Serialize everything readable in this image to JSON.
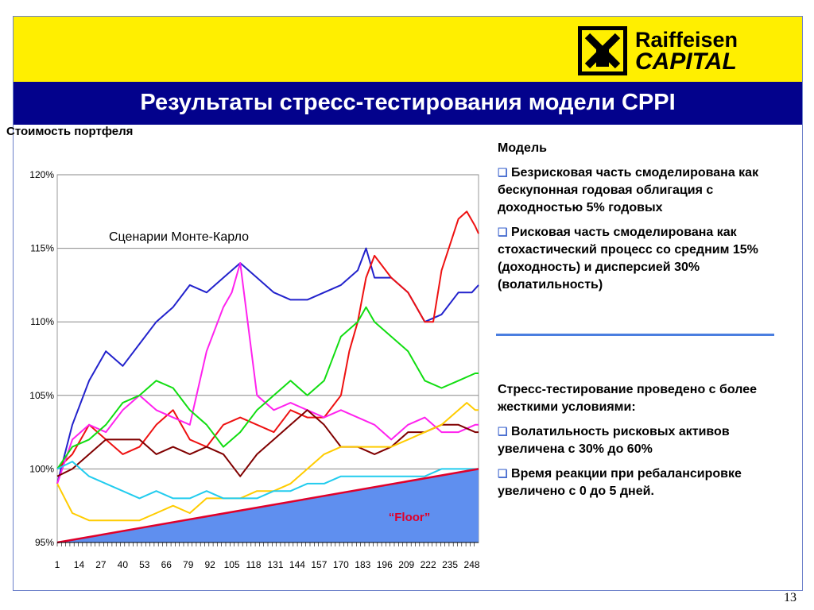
{
  "brand": {
    "line1": "Raiffeisen",
    "line2": "CAPITAL"
  },
  "slide": {
    "title": "Результаты стресс-тестирования модели CPPI",
    "page_number": "13"
  },
  "chart_data": {
    "type": "line",
    "title": "Стоимость портфеля",
    "annotation": "Сценарии Монте-Карло",
    "floor_label": "“Floor”",
    "y_ticks": [
      "95%",
      "100%",
      "105%",
      "110%",
      "115%",
      "120%"
    ],
    "ylim": [
      95,
      120
    ],
    "x_ticks": [
      "1",
      "14",
      "27",
      "40",
      "53",
      "66",
      "79",
      "92",
      "105",
      "118",
      "131",
      "144",
      "157",
      "170",
      "183",
      "196",
      "209",
      "222",
      "235",
      "248"
    ],
    "xlim": [
      1,
      252
    ],
    "grid": true,
    "floor": {
      "color": "#5f8fef",
      "line_color": "#e0002a",
      "x": [
        1,
        252
      ],
      "y": [
        95,
        100
      ]
    },
    "series": [
      {
        "color": "#2222cc",
        "x": [
          1,
          10,
          20,
          30,
          40,
          50,
          60,
          70,
          80,
          90,
          100,
          110,
          120,
          130,
          140,
          150,
          160,
          170,
          180,
          185,
          190,
          200,
          210,
          220,
          230,
          240,
          248,
          252
        ],
        "y": [
          99,
          103,
          106,
          108,
          107,
          108.5,
          110,
          111,
          112.5,
          112,
          113,
          114,
          113,
          112,
          111.5,
          111.5,
          112,
          112.5,
          113.5,
          115,
          113,
          113,
          112,
          110,
          110.5,
          112,
          112,
          112.5
        ]
      },
      {
        "color": "#ee1111",
        "x": [
          1,
          10,
          20,
          30,
          40,
          50,
          60,
          70,
          80,
          90,
          100,
          110,
          120,
          130,
          140,
          150,
          160,
          170,
          175,
          180,
          185,
          190,
          200,
          210,
          215,
          220,
          225,
          230,
          240,
          245,
          250,
          252
        ],
        "y": [
          100,
          101,
          103,
          102,
          101,
          101.5,
          103,
          104,
          102,
          101.5,
          103,
          103.5,
          103,
          102.5,
          104,
          103.5,
          103.5,
          105,
          108,
          110,
          113,
          114.5,
          113,
          112,
          111,
          110,
          110,
          113.5,
          117,
          117.5,
          116.5,
          116
        ]
      },
      {
        "color": "#ff22ee",
        "x": [
          1,
          10,
          20,
          30,
          40,
          50,
          60,
          70,
          80,
          90,
          100,
          105,
          110,
          120,
          130,
          140,
          150,
          160,
          170,
          180,
          190,
          200,
          210,
          220,
          230,
          240,
          250,
          252
        ],
        "y": [
          99,
          102,
          103,
          102.5,
          104,
          105,
          104,
          103.5,
          103,
          108,
          111,
          112,
          114,
          105,
          104,
          104.5,
          104,
          103.5,
          104,
          103.5,
          103,
          102,
          103,
          103.5,
          102.5,
          102.5,
          103,
          103
        ]
      },
      {
        "color": "#11dd11",
        "x": [
          1,
          10,
          20,
          30,
          40,
          50,
          60,
          70,
          80,
          90,
          100,
          110,
          120,
          130,
          140,
          150,
          160,
          170,
          180,
          185,
          190,
          200,
          210,
          220,
          230,
          240,
          250,
          252
        ],
        "y": [
          100,
          101.5,
          102,
          103,
          104.5,
          105,
          106,
          105.5,
          104,
          103,
          101.5,
          102.5,
          104,
          105,
          106,
          105,
          106,
          109,
          110,
          111,
          110,
          109,
          108,
          106,
          105.5,
          106,
          106.5,
          106.5
        ]
      },
      {
        "color": "#800000",
        "x": [
          1,
          10,
          20,
          30,
          40,
          50,
          60,
          70,
          80,
          90,
          100,
          110,
          120,
          130,
          140,
          150,
          160,
          170,
          180,
          190,
          200,
          210,
          220,
          230,
          240,
          250,
          252
        ],
        "y": [
          99.5,
          100,
          101,
          102,
          102,
          102,
          101,
          101.5,
          101,
          101.5,
          101,
          99.5,
          101,
          102,
          103,
          104,
          103,
          101.5,
          101.5,
          101,
          101.5,
          102.5,
          102.5,
          103,
          103,
          102.5,
          102.5
        ]
      },
      {
        "color": "#ffcc00",
        "x": [
          1,
          10,
          20,
          30,
          40,
          50,
          60,
          70,
          80,
          90,
          100,
          110,
          120,
          130,
          140,
          150,
          160,
          170,
          180,
          190,
          200,
          210,
          220,
          230,
          240,
          245,
          250,
          252
        ],
        "y": [
          99,
          97,
          96.5,
          96.5,
          96.5,
          96.5,
          97,
          97.5,
          97,
          98,
          98,
          98,
          98.5,
          98.5,
          99,
          100,
          101,
          101.5,
          101.5,
          101.5,
          101.5,
          102,
          102.5,
          103,
          104,
          104.5,
          104,
          104
        ]
      },
      {
        "color": "#22ccee",
        "x": [
          1,
          10,
          20,
          30,
          40,
          50,
          60,
          70,
          80,
          90,
          100,
          110,
          120,
          130,
          140,
          150,
          160,
          170,
          180,
          190,
          200,
          210,
          220,
          230,
          240,
          250,
          252
        ],
        "y": [
          100,
          100.5,
          99.5,
          99,
          98.5,
          98,
          98.5,
          98,
          98,
          98.5,
          98,
          98,
          98,
          98.5,
          98.5,
          99,
          99,
          99.5,
          99.5,
          99.5,
          99.5,
          99.5,
          99.5,
          100,
          100,
          100,
          100
        ]
      }
    ]
  },
  "model": {
    "heading": "Модель",
    "bullets": [
      "Безрисковая часть смоделирована как бескупонная годовая облигация с доходностью 5% годовых",
      "Рисковая часть смоделирована как стохастический процесс со средним 15% (доходность) и дисперсией 30% (волатильность)"
    ]
  },
  "stress": {
    "heading": "Стресс-тестирование проведено с более жесткими условиями:",
    "bullets": [
      "Волатильность рисковых активов увеличена с 30% до 60%",
      "Время реакции при ребалансировке увеличено с 0 до 5 дней."
    ]
  },
  "bullet_glyph": "❑"
}
